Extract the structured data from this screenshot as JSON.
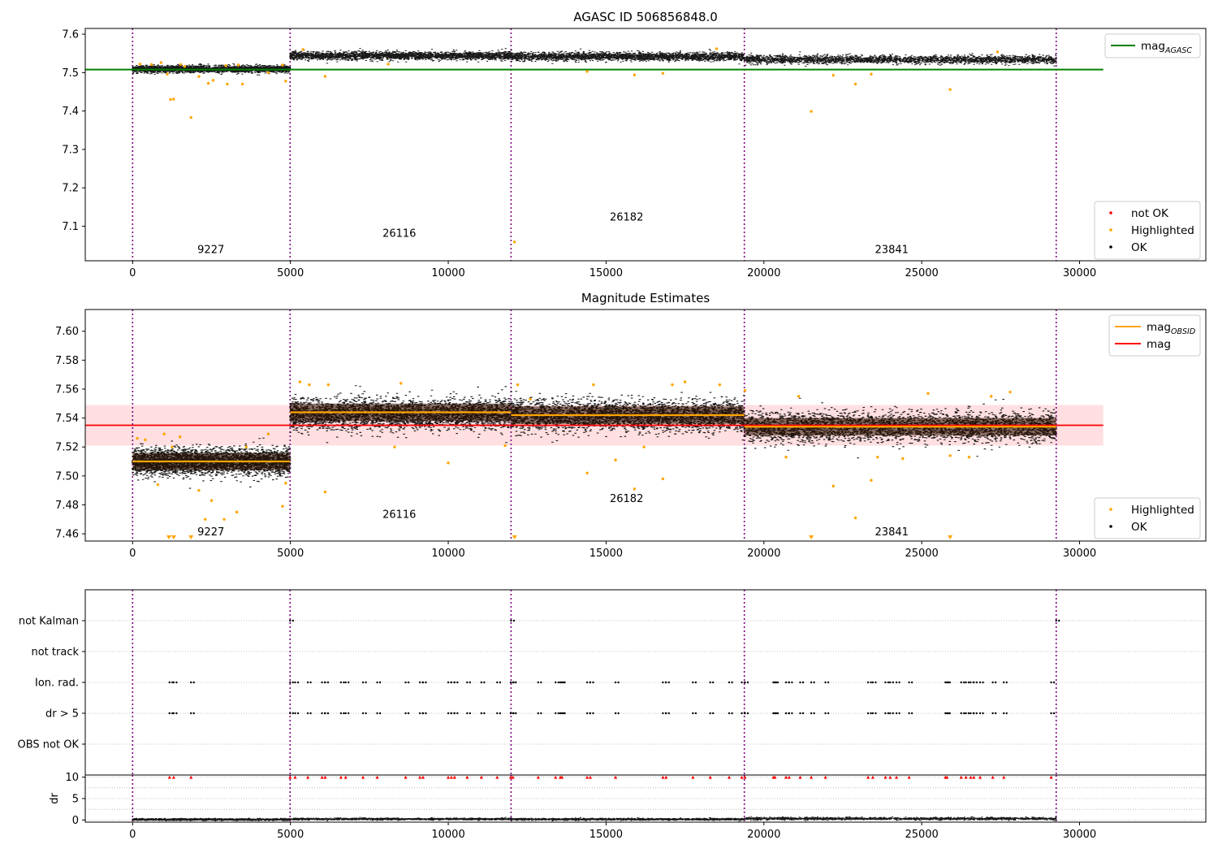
{
  "figure": {
    "chart_data": [
      {
        "type": "scatter",
        "title": "AGASC ID 506856848.0",
        "xlabel": "",
        "ylabel": "",
        "xlim": [
          -1500,
          34000
        ],
        "ylim": [
          7.01,
          7.615
        ],
        "xticks": [
          0,
          5000,
          10000,
          15000,
          20000,
          25000,
          30000
        ],
        "xtick_labels": [
          "0",
          "5000",
          "10000",
          "15000",
          "20000",
          "25000",
          "30000"
        ],
        "yticks": [
          7.1,
          7.2,
          7.3,
          7.4,
          7.5,
          7.6
        ],
        "ytick_labels": [
          "7.1",
          "7.2",
          "7.3",
          "7.4",
          "7.5",
          "7.6"
        ],
        "grid": false,
        "obs_boundaries": [
          0,
          4990,
          11990,
          19380,
          29260
        ],
        "obs_labels": [
          {
            "text": "9227",
            "x": 2480,
            "y": 7.03
          },
          {
            "text": "26116",
            "x": 8450,
            "y": 7.072
          },
          {
            "text": "26182",
            "x": 15650,
            "y": 7.115
          },
          {
            "text": "23841",
            "x": 24050,
            "y": 7.03
          }
        ],
        "mag_agasc": {
          "value": 7.508,
          "x_range": [
            -1500,
            30750
          ]
        },
        "ok_segments": [
          {
            "x_range": [
              0,
              4990
            ],
            "mean": 7.51,
            "spread": 0.006
          },
          {
            "x_range": [
              4990,
              11990
            ],
            "mean": 7.545,
            "spread": 0.007
          },
          {
            "x_range": [
              11990,
              19380
            ],
            "mean": 7.543,
            "spread": 0.007
          },
          {
            "x_range": [
              19380,
              29260
            ],
            "mean": 7.535,
            "spread": 0.007
          }
        ],
        "highlighted_points": [
          [
            230,
            7.522
          ],
          [
            600,
            7.521
          ],
          [
            900,
            7.526
          ],
          [
            1100,
            7.496
          ],
          [
            1200,
            7.43
          ],
          [
            1300,
            7.431
          ],
          [
            1520,
            7.521
          ],
          [
            1650,
            7.516
          ],
          [
            1850,
            7.383
          ],
          [
            2100,
            7.49
          ],
          [
            2400,
            7.472
          ],
          [
            2550,
            7.48
          ],
          [
            2950,
            7.518
          ],
          [
            3000,
            7.47
          ],
          [
            3350,
            7.52
          ],
          [
            3480,
            7.47
          ],
          [
            4300,
            7.5
          ],
          [
            4750,
            7.52
          ],
          [
            4850,
            7.478
          ],
          [
            5400,
            7.56
          ],
          [
            6100,
            7.49
          ],
          [
            8100,
            7.522
          ],
          [
            12100,
            7.059
          ],
          [
            14400,
            7.503
          ],
          [
            15900,
            7.494
          ],
          [
            16800,
            7.498
          ],
          [
            18500,
            7.562
          ],
          [
            21500,
            7.399
          ],
          [
            22200,
            7.493
          ],
          [
            22900,
            7.47
          ],
          [
            23400,
            7.496
          ],
          [
            25900,
            7.456
          ],
          [
            27400,
            7.554
          ]
        ],
        "not_ok_points": [],
        "legends": [
          {
            "position": "upper-right",
            "entries": [
              {
                "label": "mag",
                "subscript": "AGASC",
                "color": "#008000",
                "marker": "line"
              }
            ]
          },
          {
            "position": "lower-right",
            "entries": [
              {
                "label": "not OK",
                "color": "#ff0000",
                "marker": "dot"
              },
              {
                "label": "Highlighted",
                "color": "#ffa500",
                "marker": "dot"
              },
              {
                "label": "OK",
                "color": "#000000",
                "marker": "dot"
              }
            ]
          }
        ]
      },
      {
        "type": "scatter",
        "title": "Magnitude Estimates",
        "xlabel": "",
        "ylabel": "",
        "xlim": [
          -1500,
          34000
        ],
        "ylim": [
          7.455,
          7.615
        ],
        "xticks": [
          0,
          5000,
          10000,
          15000,
          20000,
          25000,
          30000
        ],
        "xtick_labels": [
          "0",
          "5000",
          "10000",
          "15000",
          "20000",
          "25000",
          "30000"
        ],
        "yticks": [
          7.46,
          7.48,
          7.5,
          7.52,
          7.54,
          7.56,
          7.58,
          7.6
        ],
        "ytick_labels": [
          "7.46",
          "7.48",
          "7.50",
          "7.52",
          "7.54",
          "7.56",
          "7.58",
          "7.60"
        ],
        "grid": false,
        "obs_boundaries": [
          0,
          4990,
          11990,
          19380,
          29260
        ],
        "obs_labels": [
          {
            "text": "9227",
            "x": 2480,
            "y": 7.459
          },
          {
            "text": "26116",
            "x": 8450,
            "y": 7.471
          },
          {
            "text": "26182",
            "x": 15650,
            "y": 7.482
          },
          {
            "text": "23841",
            "x": 24050,
            "y": 7.459
          }
        ],
        "mag": {
          "value": 7.535,
          "band": [
            7.521,
            7.549
          ],
          "x_range": [
            -1500,
            30750
          ]
        },
        "mag_obsid": [
          {
            "x_range": [
              0,
              4990
            ],
            "value": 7.51
          },
          {
            "x_range": [
              4990,
              11990
            ],
            "value": 7.544
          },
          {
            "x_range": [
              11990,
              19380
            ],
            "value": 7.542
          },
          {
            "x_range": [
              19380,
              29260
            ],
            "value": 7.534
          }
        ],
        "ok_segments": [
          {
            "x_range": [
              0,
              4990
            ],
            "mean": 7.51,
            "spread": 0.006
          },
          {
            "x_range": [
              4990,
              11990
            ],
            "mean": 7.543,
            "spread": 0.007
          },
          {
            "x_range": [
              11990,
              19380
            ],
            "mean": 7.542,
            "spread": 0.007
          },
          {
            "x_range": [
              19380,
              29260
            ],
            "mean": 7.534,
            "spread": 0.007
          }
        ],
        "highlighted_points": [
          [
            150,
            7.526
          ],
          [
            400,
            7.525
          ],
          [
            800,
            7.494
          ],
          [
            1000,
            7.529
          ],
          [
            1250,
            7.52
          ],
          [
            1500,
            7.527
          ],
          [
            2100,
            7.49
          ],
          [
            2300,
            7.47
          ],
          [
            2500,
            7.483
          ],
          [
            2900,
            7.47
          ],
          [
            3300,
            7.475
          ],
          [
            3600,
            7.52
          ],
          [
            4300,
            7.529
          ],
          [
            4750,
            7.479
          ],
          [
            4850,
            7.495
          ],
          [
            5300,
            7.565
          ],
          [
            5600,
            7.563
          ],
          [
            6100,
            7.489
          ],
          [
            6200,
            7.563
          ],
          [
            8300,
            7.52
          ],
          [
            8500,
            7.564
          ],
          [
            10000,
            7.509
          ],
          [
            11800,
            7.521
          ],
          [
            12200,
            7.563
          ],
          [
            12600,
            7.553
          ],
          [
            14400,
            7.502
          ],
          [
            14600,
            7.563
          ],
          [
            15300,
            7.511
          ],
          [
            15900,
            7.491
          ],
          [
            16200,
            7.52
          ],
          [
            16800,
            7.498
          ],
          [
            17100,
            7.563
          ],
          [
            17500,
            7.565
          ],
          [
            18600,
            7.563
          ],
          [
            19400,
            7.559
          ],
          [
            20700,
            7.513
          ],
          [
            21100,
            7.555
          ],
          [
            22200,
            7.493
          ],
          [
            22900,
            7.471
          ],
          [
            23400,
            7.497
          ],
          [
            23600,
            7.513
          ],
          [
            24400,
            7.512
          ],
          [
            25200,
            7.557
          ],
          [
            25900,
            7.514
          ],
          [
            26500,
            7.513
          ],
          [
            27200,
            7.555
          ],
          [
            27800,
            7.558
          ]
        ],
        "highlighted_offscale_markers": [
          1150,
          1300,
          1850,
          12100,
          21500,
          25900
        ],
        "legends": [
          {
            "position": "upper-right",
            "entries": [
              {
                "label": "mag",
                "subscript": "OBSID",
                "color": "#ffa500",
                "marker": "line"
              },
              {
                "label": "mag",
                "color": "#ff0000",
                "marker": "line"
              }
            ]
          },
          {
            "position": "lower-right",
            "entries": [
              {
                "label": "Highlighted",
                "color": "#ffa500",
                "marker": "dot"
              },
              {
                "label": "OK",
                "color": "#000000",
                "marker": "dot"
              }
            ]
          }
        ]
      },
      {
        "type": "scatter",
        "title": "",
        "xlabel": "",
        "ylabel": "",
        "xlim": [
          -1500,
          34000
        ],
        "ylim": [
          0,
          6
        ],
        "xticks": [],
        "xtick_labels": [],
        "yticks": [
          1,
          2,
          3,
          4,
          5
        ],
        "ytick_labels": [
          "OBS not OK",
          "dr > 5",
          "Ion. rad.",
          "not track",
          "not Kalman"
        ],
        "grid": true,
        "obs_boundaries": [
          0,
          4990,
          11990,
          19380,
          29260
        ],
        "flags": {
          "not Kalman": [
            4990,
            11990,
            29260
          ],
          "not track": [],
          "Ion. rad.": [
            1170,
            1300,
            1850,
            4990,
            5150,
            5550,
            6000,
            6100,
            6600,
            6750,
            7300,
            7750,
            8650,
            9100,
            9200,
            10000,
            10100,
            10200,
            10600,
            11050,
            11550,
            11980,
            12050,
            12850,
            13400,
            13550,
            13600,
            14400,
            14500,
            15300,
            16800,
            16900,
            17750,
            18300,
            18900,
            19300,
            19400,
            20300,
            20350,
            20700,
            20800,
            21150,
            21500,
            21950,
            23300,
            23450,
            23850,
            24000,
            24200,
            24600,
            25750,
            25800,
            26250,
            26400,
            26550,
            26650,
            26850,
            27250,
            27600,
            29100
          ],
          "dr > 5": [
            1170,
            1300,
            1850,
            4990,
            5150,
            5550,
            6000,
            6100,
            6600,
            6750,
            7300,
            7750,
            8650,
            9100,
            9200,
            10000,
            10100,
            10200,
            10600,
            11050,
            11550,
            11980,
            12050,
            12850,
            13400,
            13550,
            13600,
            14400,
            14500,
            15300,
            16800,
            16900,
            17750,
            18300,
            18900,
            19300,
            19400,
            20300,
            20350,
            20700,
            20800,
            21150,
            21500,
            21950,
            23300,
            23450,
            23850,
            24000,
            24200,
            24600,
            25750,
            25800,
            26250,
            26400,
            26550,
            26650,
            26850,
            27250,
            27600,
            29100
          ],
          "OBS not OK": []
        }
      },
      {
        "type": "scatter",
        "title": "",
        "xlabel": "",
        "ylabel": "dr",
        "xlim": [
          -1500,
          34000
        ],
        "ylim": [
          -0.5,
          10.5
        ],
        "xticks": [
          0,
          5000,
          10000,
          15000,
          20000,
          25000,
          30000
        ],
        "xtick_labels": [
          "0",
          "5000",
          "10000",
          "15000",
          "20000",
          "25000",
          "30000"
        ],
        "yticks": [
          0,
          5,
          10
        ],
        "ytick_labels": [
          "0",
          "5",
          "10"
        ],
        "grid": true,
        "obs_boundaries": [
          0,
          4990,
          11990,
          19380,
          29260
        ],
        "dr_segments": [
          {
            "x_range": [
              0,
              4990
            ],
            "mean": 0.2,
            "spread": 0.15
          },
          {
            "x_range": [
              4990,
              11990
            ],
            "mean": 0.3,
            "spread": 0.15
          },
          {
            "x_range": [
              11990,
              19380
            ],
            "mean": 0.25,
            "spread": 0.15
          },
          {
            "x_range": [
              19380,
              29260
            ],
            "mean": 0.4,
            "spread": 0.2
          }
        ],
        "dr_capped_at": 10,
        "dr_over_limit_x": [
          1170,
          1300,
          1850,
          4990,
          5150,
          5550,
          6000,
          6100,
          6600,
          6750,
          7300,
          7750,
          8650,
          9100,
          9200,
          10000,
          10100,
          10200,
          10600,
          11050,
          11550,
          11980,
          12050,
          12850,
          13400,
          13550,
          13600,
          14400,
          14500,
          15300,
          16800,
          16900,
          17750,
          18300,
          18900,
          19300,
          19400,
          20300,
          20350,
          20700,
          20800,
          21150,
          21500,
          21950,
          23300,
          23450,
          23850,
          24000,
          24200,
          24600,
          25750,
          25800,
          26250,
          26400,
          26550,
          26650,
          26850,
          27250,
          27600,
          29100
        ]
      }
    ]
  },
  "colors": {
    "ok": "#000000",
    "highlighted": "#ffa500",
    "not_ok": "#ff0000",
    "mag_agasc": "#008000",
    "mag": "#ff0000",
    "mag_band": "#ffd7d9",
    "mag_obsid": "#ffa500",
    "obs_boundary": "#800080",
    "grid": "#b0b0b0"
  }
}
